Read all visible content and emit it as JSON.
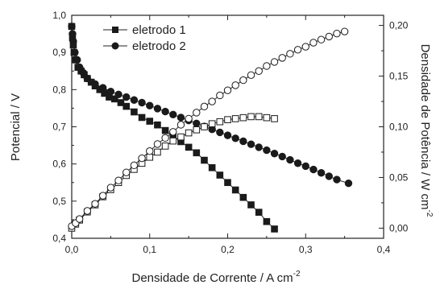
{
  "chart_data": {
    "type": "line",
    "xlabel": "Densidade de Corrente / A cm",
    "xlabel_sup": "-2",
    "ylabel_left": "Potencial / V",
    "ylabel_right": "Densidade de Potência / W cm",
    "ylabel_right_sup": "-2",
    "xlim": [
      0.0,
      0.4
    ],
    "ylim_left": [
      0.4,
      1.0
    ],
    "ylim_right": [
      -0.01,
      0.21
    ],
    "x_ticks": [
      {
        "value": 0.0,
        "label": "0,0"
      },
      {
        "value": 0.1,
        "label": "0,1"
      },
      {
        "value": 0.2,
        "label": "0,2"
      },
      {
        "value": 0.3,
        "label": "0,3"
      },
      {
        "value": 0.4,
        "label": "0,4"
      }
    ],
    "y_left_ticks": [
      {
        "value": 0.4,
        "label": "0,4"
      },
      {
        "value": 0.5,
        "label": "0,5"
      },
      {
        "value": 0.6,
        "label": "0,6"
      },
      {
        "value": 0.7,
        "label": "0,7"
      },
      {
        "value": 0.8,
        "label": "0,8"
      },
      {
        "value": 0.9,
        "label": "0,9"
      },
      {
        "value": 1.0,
        "label": "1,0"
      }
    ],
    "y_right_ticks": [
      {
        "value": 0.0,
        "label": "0,00"
      },
      {
        "value": 0.05,
        "label": "0,05"
      },
      {
        "value": 0.1,
        "label": "0,10"
      },
      {
        "value": 0.15,
        "label": "0,15"
      },
      {
        "value": 0.2,
        "label": "0,20"
      }
    ],
    "grid": false,
    "legend": {
      "placement": "top-center",
      "entries": [
        {
          "label": "eletrodo 1",
          "marker": "square"
        },
        {
          "label": "eletrodo 2",
          "marker": "circle"
        }
      ]
    },
    "series": [
      {
        "name": "eletrodo 1",
        "kind": "potential",
        "axis": "left",
        "marker": "square",
        "filled": true,
        "x": [
          0.0,
          0.001,
          0.002,
          0.003,
          0.005,
          0.008,
          0.012,
          0.016,
          0.02,
          0.025,
          0.03,
          0.036,
          0.042,
          0.048,
          0.055,
          0.063,
          0.07,
          0.08,
          0.09,
          0.1,
          0.11,
          0.12,
          0.13,
          0.14,
          0.15,
          0.16,
          0.17,
          0.18,
          0.19,
          0.2,
          0.21,
          0.22,
          0.23,
          0.24,
          0.25,
          0.26
        ],
        "y": [
          0.97,
          0.94,
          0.92,
          0.9,
          0.88,
          0.86,
          0.85,
          0.84,
          0.83,
          0.82,
          0.81,
          0.8,
          0.79,
          0.78,
          0.775,
          0.765,
          0.755,
          0.74,
          0.725,
          0.715,
          0.705,
          0.69,
          0.675,
          0.66,
          0.645,
          0.63,
          0.61,
          0.59,
          0.57,
          0.55,
          0.53,
          0.51,
          0.49,
          0.47,
          0.445,
          0.425
        ]
      },
      {
        "name": "eletrodo 2",
        "kind": "potential",
        "axis": "left",
        "marker": "circle",
        "filled": true,
        "x": [
          0.0,
          0.001,
          0.002,
          0.004,
          0.007,
          0.01,
          0.015,
          0.02,
          0.03,
          0.04,
          0.05,
          0.06,
          0.07,
          0.08,
          0.09,
          0.1,
          0.11,
          0.12,
          0.13,
          0.14,
          0.15,
          0.16,
          0.17,
          0.18,
          0.19,
          0.2,
          0.21,
          0.22,
          0.23,
          0.24,
          0.25,
          0.26,
          0.27,
          0.28,
          0.29,
          0.3,
          0.31,
          0.32,
          0.33,
          0.34,
          0.355
        ],
        "y": [
          0.97,
          0.95,
          0.93,
          0.9,
          0.88,
          0.86,
          0.845,
          0.83,
          0.815,
          0.805,
          0.795,
          0.787,
          0.78,
          0.772,
          0.765,
          0.757,
          0.749,
          0.741,
          0.733,
          0.725,
          0.717,
          0.709,
          0.701,
          0.693,
          0.685,
          0.677,
          0.669,
          0.661,
          0.653,
          0.645,
          0.637,
          0.628,
          0.62,
          0.611,
          0.602,
          0.594,
          0.585,
          0.576,
          0.567,
          0.558,
          0.548
        ]
      },
      {
        "name": "eletrodo 1",
        "kind": "power",
        "axis": "right",
        "marker": "square",
        "filled": false,
        "x": [
          0.0,
          0.005,
          0.01,
          0.02,
          0.03,
          0.04,
          0.05,
          0.06,
          0.07,
          0.08,
          0.09,
          0.1,
          0.11,
          0.12,
          0.13,
          0.14,
          0.15,
          0.16,
          0.17,
          0.18,
          0.19,
          0.2,
          0.21,
          0.22,
          0.23,
          0.24,
          0.25,
          0.26
        ],
        "y": [
          0.0,
          0.004,
          0.008,
          0.016,
          0.023,
          0.031,
          0.038,
          0.045,
          0.052,
          0.058,
          0.064,
          0.07,
          0.075,
          0.081,
          0.086,
          0.09,
          0.094,
          0.097,
          0.1,
          0.103,
          0.105,
          0.107,
          0.108,
          0.109,
          0.11,
          0.11,
          0.109,
          0.108
        ]
      },
      {
        "name": "eletrodo 2",
        "kind": "power",
        "axis": "right",
        "marker": "circle",
        "filled": false,
        "x": [
          0.0,
          0.005,
          0.01,
          0.02,
          0.03,
          0.04,
          0.05,
          0.06,
          0.07,
          0.08,
          0.09,
          0.1,
          0.11,
          0.12,
          0.13,
          0.14,
          0.15,
          0.16,
          0.17,
          0.18,
          0.19,
          0.2,
          0.21,
          0.22,
          0.23,
          0.24,
          0.25,
          0.26,
          0.27,
          0.28,
          0.29,
          0.3,
          0.31,
          0.32,
          0.33,
          0.34,
          0.35
        ],
        "y": [
          0.002,
          0.005,
          0.009,
          0.017,
          0.024,
          0.032,
          0.04,
          0.047,
          0.055,
          0.062,
          0.069,
          0.076,
          0.083,
          0.089,
          0.095,
          0.102,
          0.108,
          0.114,
          0.12,
          0.125,
          0.131,
          0.136,
          0.141,
          0.146,
          0.151,
          0.155,
          0.16,
          0.164,
          0.168,
          0.172,
          0.176,
          0.179,
          0.183,
          0.186,
          0.189,
          0.192,
          0.194
        ]
      }
    ]
  }
}
